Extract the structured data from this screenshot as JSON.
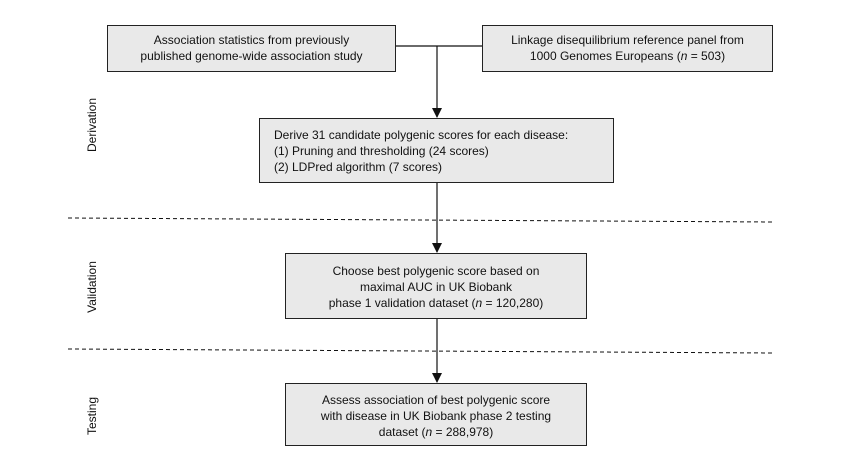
{
  "boxes": {
    "association": {
      "lines": [
        "Association statistics from previously",
        "published genome-wide association study"
      ]
    },
    "ld_panel": {
      "line1": "Linkage disequilibrium reference panel from",
      "line2_pre": "1000 Genomes Europeans (",
      "n_symbol": "n",
      "line2_post": " = 503)"
    },
    "derive": {
      "lines": [
        "Derive 31 candidate polygenic scores for each disease:",
        "(1) Pruning and thresholding (24 scores)",
        "(2) LDPred algorithm (7 scores)"
      ]
    },
    "validation": {
      "line1": "Choose best polygenic score based on",
      "line2": "maximal AUC in UK Biobank",
      "line3_pre": "phase 1 validation dataset (",
      "n_symbol": "n",
      "line3_post": " = 120,280)"
    },
    "testing": {
      "line1": "Assess association of best polygenic score",
      "line2": "with disease in UK Biobank phase 2 testing",
      "line3_pre": "dataset (",
      "n_symbol": "n",
      "line3_post": " = 288,978)"
    }
  },
  "phases": {
    "derivation": "Derivation",
    "validation": "Validation",
    "testing": "Testing"
  }
}
